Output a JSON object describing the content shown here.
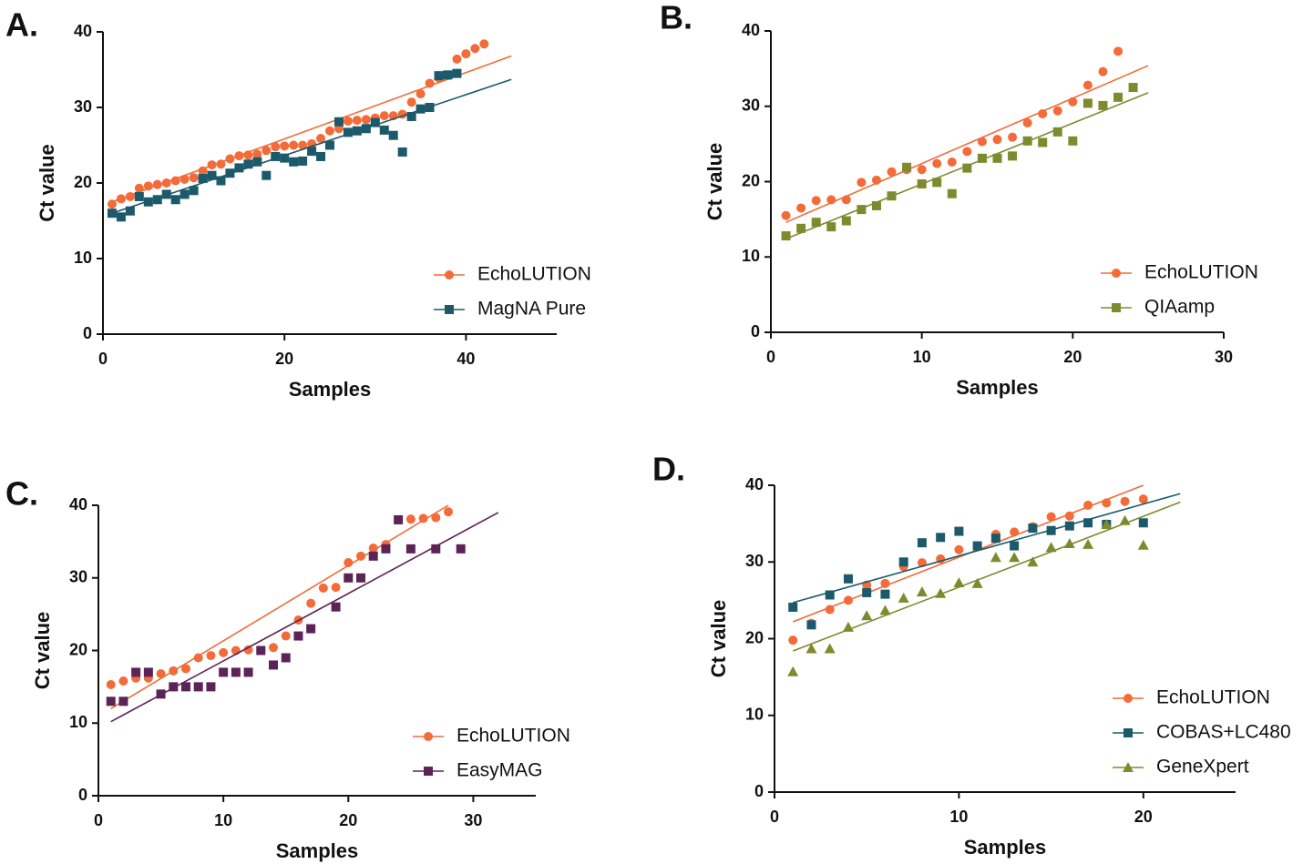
{
  "chart_data": [
    {
      "type": "scatter",
      "panel_label": "A.",
      "x_label": "Samples",
      "y_label": "Ct value",
      "xlim": [
        0,
        50
      ],
      "xticks": [
        0,
        20,
        40
      ],
      "ylim": [
        0,
        40
      ],
      "yticks": [
        0,
        10,
        20,
        30,
        40
      ],
      "legend": "lower right",
      "series": [
        {
          "name": "EchoLUTION",
          "color": "#f26b38",
          "marker": "circle",
          "x": [
            1,
            2,
            3,
            4,
            5,
            6,
            7,
            8,
            9,
            10,
            11,
            12,
            13,
            14,
            15,
            16,
            17,
            18,
            19,
            20,
            21,
            22,
            23,
            24,
            25,
            26,
            27,
            28,
            29,
            30,
            31,
            32,
            33,
            34,
            35,
            36,
            37,
            38,
            39,
            40,
            41,
            42
          ],
          "values": [
            17.2,
            17.9,
            18.2,
            19.3,
            19.6,
            19.8,
            20.0,
            20.3,
            20.5,
            20.7,
            21.6,
            22.4,
            22.5,
            23.2,
            23.6,
            23.7,
            23.8,
            24.3,
            24.8,
            24.9,
            25.0,
            25.0,
            25.2,
            25.9,
            26.9,
            27.2,
            28.2,
            28.3,
            28.4,
            28.6,
            28.9,
            28.9,
            29.1,
            30.7,
            31.8,
            33.2,
            33.9,
            34.2,
            36.4,
            37.1,
            37.8,
            38.4
          ],
          "trend": {
            "x": [
              1,
              45
            ],
            "values": [
              17.5,
              36.8
            ]
          }
        },
        {
          "name": "MagNA Pure",
          "color": "#1c5a6b",
          "marker": "square",
          "x": [
            1,
            2,
            3,
            4,
            5,
            6,
            7,
            8,
            9,
            10,
            11,
            12,
            13,
            14,
            15,
            16,
            17,
            18,
            19,
            20,
            21,
            22,
            23,
            24,
            25,
            26,
            27,
            28,
            29,
            30,
            31,
            32,
            33,
            34,
            35,
            36,
            37,
            38,
            39
          ],
          "values": [
            16.0,
            15.5,
            16.3,
            18.2,
            17.5,
            17.8,
            18.5,
            17.8,
            18.5,
            19.0,
            20.6,
            21.0,
            20.3,
            21.3,
            22.0,
            22.5,
            22.8,
            21.0,
            23.5,
            23.3,
            22.8,
            22.9,
            24.2,
            23.5,
            25.0,
            28.1,
            26.7,
            26.9,
            27.2,
            28.0,
            27.0,
            26.3,
            24.1,
            28.8,
            29.8,
            30.0,
            34.2,
            34.3,
            34.5
          ],
          "trend": {
            "x": [
              1,
              45
            ],
            "values": [
              16.0,
              33.7
            ]
          }
        }
      ]
    },
    {
      "type": "scatter",
      "panel_label": "B.",
      "x_label": "Samples",
      "y_label": "Ct value",
      "xlim": [
        0,
        30
      ],
      "xticks": [
        0,
        10,
        20,
        30
      ],
      "ylim": [
        0,
        40
      ],
      "yticks": [
        0,
        10,
        20,
        30,
        40
      ],
      "legend": "lower right",
      "series": [
        {
          "name": "EchoLUTION",
          "color": "#f26b38",
          "marker": "circle",
          "x": [
            1,
            2,
            3,
            4,
            5,
            6,
            7,
            8,
            9,
            10,
            11,
            12,
            13,
            14,
            15,
            16,
            17,
            18,
            19,
            20,
            21,
            22,
            23
          ],
          "values": [
            15.5,
            16.5,
            17.5,
            17.6,
            17.6,
            19.9,
            20.2,
            21.3,
            21.6,
            21.6,
            22.4,
            22.6,
            24.0,
            25.3,
            25.6,
            25.9,
            27.8,
            29.0,
            29.4,
            30.6,
            32.8,
            34.6,
            37.3
          ],
          "trend": {
            "x": [
              1,
              25
            ],
            "values": [
              14.6,
              35.4
            ]
          }
        },
        {
          "name": "QIAamp",
          "color": "#7d8b2e",
          "marker": "square",
          "x": [
            1,
            2,
            3,
            4,
            5,
            6,
            7,
            8,
            9,
            10,
            11,
            12,
            13,
            14,
            15,
            16,
            17,
            18,
            19,
            20,
            21,
            22,
            23,
            24
          ],
          "values": [
            12.8,
            13.8,
            14.6,
            14.0,
            14.8,
            16.3,
            16.8,
            18.1,
            21.9,
            19.7,
            19.9,
            18.4,
            21.8,
            23.1,
            23.1,
            23.4,
            25.4,
            25.2,
            26.6,
            25.4,
            30.4,
            30.1,
            31.2,
            32.5
          ],
          "trend": {
            "x": [
              1,
              25
            ],
            "values": [
              12.4,
              31.8
            ]
          }
        }
      ]
    },
    {
      "type": "scatter",
      "panel_label": "C.",
      "x_label": "Samples",
      "y_label": "Ct value",
      "xlim": [
        0,
        35
      ],
      "xticks": [
        0,
        10,
        20,
        30
      ],
      "ylim": [
        0,
        40
      ],
      "yticks": [
        0,
        10,
        20,
        30,
        40
      ],
      "legend": "lower right",
      "series": [
        {
          "name": "EchoLUTION",
          "color": "#f26b38",
          "marker": "circle",
          "x": [
            1,
            2,
            3,
            4,
            5,
            6,
            7,
            8,
            9,
            10,
            11,
            12,
            13,
            14,
            15,
            16,
            17,
            18,
            19,
            20,
            21,
            22,
            23,
            24,
            25,
            26,
            27,
            28
          ],
          "values": [
            15.3,
            15.8,
            16.2,
            16.2,
            16.8,
            17.2,
            17.5,
            19.0,
            19.3,
            19.7,
            20.0,
            20.1,
            20.0,
            20.4,
            22.0,
            24.2,
            26.5,
            28.6,
            28.7,
            32.1,
            33.0,
            34.1,
            34.6,
            38.0,
            38.1,
            38.2,
            38.3,
            39.1
          ],
          "trend": {
            "x": [
              1,
              28
            ],
            "values": [
              12.0,
              40.0
            ]
          }
        },
        {
          "name": "EasyMAG",
          "color": "#5c2357",
          "marker": "square",
          "x": [
            1,
            2,
            3,
            4,
            5,
            6,
            7,
            8,
            9,
            10,
            11,
            12,
            13,
            14,
            15,
            16,
            17,
            19,
            20,
            21,
            22,
            23,
            24,
            25,
            27,
            29
          ],
          "values": [
            13,
            13,
            17,
            17,
            14,
            15,
            15,
            15,
            15,
            17,
            17,
            17,
            20,
            18,
            19,
            22,
            23,
            26,
            30,
            30,
            33,
            34,
            38,
            34,
            34,
            34
          ],
          "trend": {
            "x": [
              1,
              32
            ],
            "values": [
              10.2,
              39.0
            ]
          }
        }
      ]
    },
    {
      "type": "scatter",
      "panel_label": "D.",
      "x_label": "Samples",
      "y_label": "Ct value",
      "xlim": [
        0,
        25
      ],
      "xticks": [
        0,
        10,
        20
      ],
      "ylim": [
        0,
        40
      ],
      "yticks": [
        0,
        10,
        20,
        30,
        40
      ],
      "legend": "lower right",
      "series": [
        {
          "name": "EchoLUTION",
          "color": "#f26b38",
          "marker": "circle",
          "x": [
            1,
            2,
            3,
            4,
            5,
            6,
            7,
            8,
            9,
            10,
            11,
            12,
            13,
            14,
            15,
            16,
            17,
            18,
            19,
            20
          ],
          "values": [
            19.8,
            22.0,
            23.8,
            25.0,
            27.0,
            27.2,
            29.4,
            29.9,
            30.4,
            31.6,
            32.1,
            33.6,
            33.9,
            34.6,
            35.9,
            36.0,
            37.4,
            37.7,
            37.9,
            38.2
          ],
          "trend": {
            "x": [
              1,
              20
            ],
            "values": [
              22.2,
              40.0
            ]
          }
        },
        {
          "name": "COBAS+LC480",
          "color": "#1c5a6b",
          "marker": "square",
          "x": [
            1,
            2,
            3,
            4,
            5,
            6,
            7,
            8,
            9,
            10,
            11,
            12,
            13,
            14,
            15,
            16,
            17,
            18,
            20
          ],
          "values": [
            24.1,
            21.8,
            25.7,
            27.8,
            26.0,
            25.8,
            30.0,
            32.5,
            33.2,
            34.0,
            32.1,
            33.1,
            32.1,
            34.4,
            34.1,
            34.7,
            35.1,
            34.9,
            35.1
          ],
          "trend": {
            "x": [
              1,
              22
            ],
            "values": [
              24.7,
              38.9
            ]
          }
        },
        {
          "name": "GeneXpert",
          "color": "#7d8b2e",
          "marker": "triangle",
          "x": [
            1,
            2,
            3,
            4,
            5,
            6,
            7,
            8,
            9,
            10,
            11,
            12,
            13,
            14,
            15,
            16,
            17,
            18,
            19,
            20
          ],
          "values": [
            15.7,
            18.7,
            18.7,
            21.5,
            23.0,
            23.7,
            25.3,
            26.1,
            25.9,
            27.3,
            27.2,
            30.6,
            30.6,
            30.0,
            31.9,
            32.4,
            32.3,
            34.9,
            35.4,
            32.2
          ],
          "trend": {
            "x": [
              1,
              22
            ],
            "values": [
              18.4,
              37.8
            ]
          }
        }
      ]
    }
  ]
}
